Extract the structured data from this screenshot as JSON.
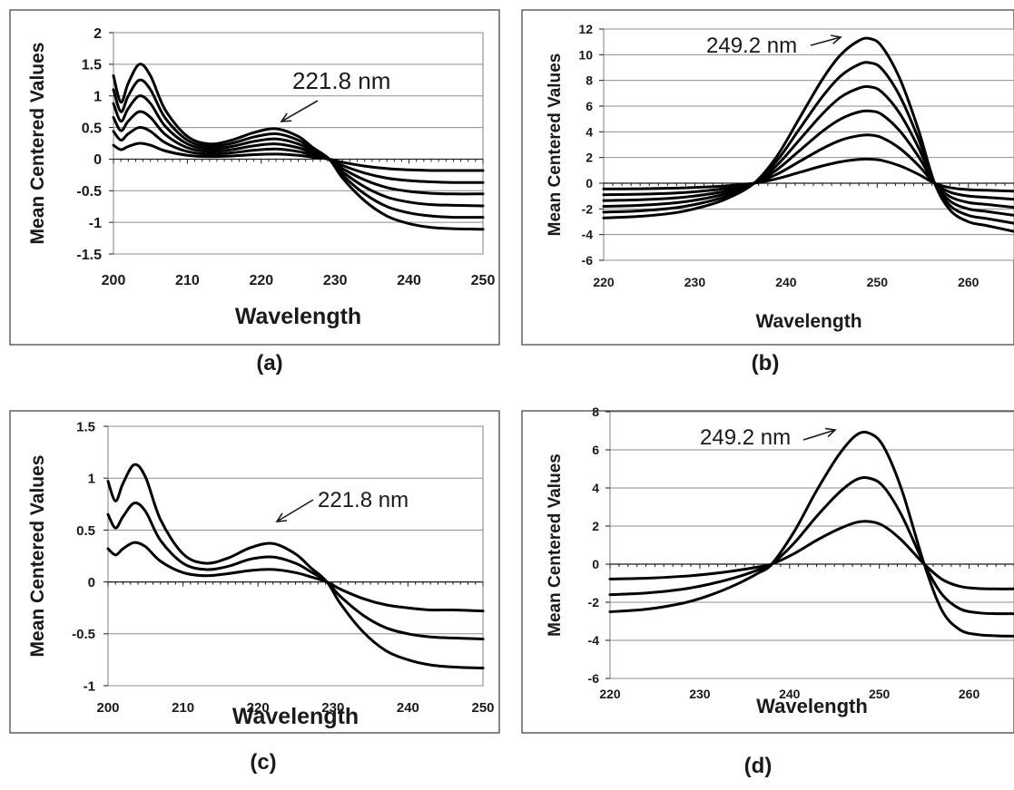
{
  "chart_data": [
    {
      "type": "line",
      "panel_label": "(a)",
      "xlabel": "Wavelength",
      "ylabel": "Mean Centered Values",
      "xlim": [
        200,
        250
      ],
      "ylim": [
        -1.5,
        2
      ],
      "x_ticks": [
        200,
        210,
        220,
        230,
        240,
        250
      ],
      "y_ticks": [
        -1.5,
        -1,
        -0.5,
        0,
        0.5,
        1,
        1.5,
        2
      ],
      "y_tick_labels": [
        "-1.5",
        "-1",
        "-0.5",
        "0",
        "0.5",
        "1",
        "1.5",
        "2"
      ],
      "grid": true,
      "annotation": {
        "text": "221.8 nm",
        "x": 221.8
      },
      "x": [
        200,
        201,
        202,
        203.5,
        205,
        207,
        210,
        213,
        216,
        219,
        222,
        225,
        227,
        229.2,
        231,
        234,
        237,
        240,
        243,
        246,
        250
      ],
      "series": [
        {
          "values": [
            0.22,
            0.15,
            0.2,
            0.25,
            0.22,
            0.13,
            0.06,
            0.04,
            0.05,
            0.07,
            0.08,
            0.06,
            0.03,
            0,
            -0.05,
            -0.11,
            -0.15,
            -0.17,
            -0.18,
            -0.18,
            -0.18
          ]
        },
        {
          "values": [
            0.44,
            0.3,
            0.4,
            0.5,
            0.44,
            0.26,
            0.12,
            0.08,
            0.1,
            0.14,
            0.16,
            0.12,
            0.06,
            0,
            -0.1,
            -0.22,
            -0.3,
            -0.34,
            -0.36,
            -0.37,
            -0.37
          ]
        },
        {
          "values": [
            0.66,
            0.45,
            0.6,
            0.75,
            0.66,
            0.39,
            0.18,
            0.12,
            0.15,
            0.21,
            0.24,
            0.18,
            0.09,
            0,
            -0.15,
            -0.33,
            -0.45,
            -0.51,
            -0.54,
            -0.55,
            -0.55
          ]
        },
        {
          "values": [
            0.88,
            0.6,
            0.8,
            1.0,
            0.88,
            0.52,
            0.24,
            0.16,
            0.2,
            0.28,
            0.32,
            0.24,
            0.12,
            0,
            -0.2,
            -0.44,
            -0.6,
            -0.68,
            -0.72,
            -0.73,
            -0.74
          ]
        },
        {
          "values": [
            1.1,
            0.75,
            1.0,
            1.25,
            1.1,
            0.65,
            0.3,
            0.2,
            0.25,
            0.35,
            0.4,
            0.3,
            0.15,
            0,
            -0.25,
            -0.55,
            -0.75,
            -0.85,
            -0.9,
            -0.92,
            -0.92
          ]
        },
        {
          "values": [
            1.32,
            0.9,
            1.2,
            1.5,
            1.32,
            0.78,
            0.36,
            0.24,
            0.3,
            0.42,
            0.48,
            0.36,
            0.18,
            0,
            -0.3,
            -0.66,
            -0.9,
            -1.02,
            -1.08,
            -1.1,
            -1.11
          ]
        }
      ]
    },
    {
      "type": "line",
      "panel_label": "(b)",
      "xlabel": "Wavelength",
      "ylabel": "Mean Centered Values",
      "xlim": [
        220,
        265
      ],
      "ylim": [
        -6,
        12
      ],
      "x_ticks": [
        220,
        230,
        240,
        250,
        260
      ],
      "y_ticks": [
        -6,
        -4,
        -2,
        0,
        2,
        4,
        6,
        8,
        10,
        12
      ],
      "y_tick_labels": [
        "-6",
        "-4",
        "-2",
        "0",
        "2",
        "4",
        "6",
        "8",
        "10",
        "12"
      ],
      "grid": true,
      "annotation": {
        "text": "249.2 nm",
        "x": 249.2
      },
      "x": [
        220,
        224,
        228,
        231,
        233.5,
        236.5,
        239,
        241.5,
        244,
        246,
        248,
        249.2,
        250.5,
        252.5,
        254.5,
        256.3,
        258,
        260,
        262,
        265
      ],
      "series": [
        {
          "values": [
            -0.45,
            -0.43,
            -0.38,
            -0.3,
            -0.2,
            0,
            0.35,
            0.85,
            1.35,
            1.67,
            1.85,
            1.87,
            1.78,
            1.35,
            0.7,
            0,
            -0.35,
            -0.5,
            -0.55,
            -0.62
          ]
        },
        {
          "values": [
            -0.9,
            -0.86,
            -0.76,
            -0.6,
            -0.4,
            0,
            0.7,
            1.7,
            2.7,
            3.35,
            3.7,
            3.75,
            3.55,
            2.7,
            1.4,
            0,
            -0.7,
            -1.0,
            -1.1,
            -1.25
          ]
        },
        {
          "values": [
            -1.35,
            -1.29,
            -1.14,
            -0.9,
            -0.6,
            0,
            1.05,
            2.55,
            4.05,
            5.0,
            5.55,
            5.62,
            5.35,
            4.05,
            2.1,
            0,
            -1.05,
            -1.5,
            -1.65,
            -1.88
          ]
        },
        {
          "values": [
            -1.8,
            -1.72,
            -1.52,
            -1.2,
            -0.8,
            0,
            1.4,
            3.4,
            5.4,
            6.7,
            7.4,
            7.5,
            7.1,
            5.4,
            2.8,
            0,
            -1.4,
            -2.0,
            -2.2,
            -2.5
          ]
        },
        {
          "values": [
            -2.25,
            -2.15,
            -1.9,
            -1.5,
            -1.0,
            0,
            1.75,
            4.25,
            6.75,
            8.35,
            9.25,
            9.37,
            8.9,
            6.75,
            3.5,
            0,
            -1.75,
            -2.5,
            -2.75,
            -3.12
          ]
        },
        {
          "values": [
            -2.7,
            -2.58,
            -2.28,
            -1.8,
            -1.2,
            0,
            2.1,
            5.1,
            8.1,
            10.0,
            11.1,
            11.25,
            10.65,
            8.1,
            4.2,
            0,
            -2.1,
            -3.0,
            -3.3,
            -3.75
          ]
        }
      ]
    },
    {
      "type": "line",
      "panel_label": "(c)",
      "xlabel": "Wavelength",
      "ylabel": "Mean Centered Values",
      "xlim": [
        200,
        250
      ],
      "ylim": [
        -1,
        1.5
      ],
      "x_ticks": [
        200,
        210,
        220,
        230,
        240,
        250
      ],
      "y_ticks": [
        -1,
        -0.5,
        0,
        0.5,
        1,
        1.5
      ],
      "y_tick_labels": [
        "-1",
        "-0.5",
        "0",
        "0.5",
        "1",
        "1.5"
      ],
      "grid": true,
      "annotation": {
        "text": "221.8 nm",
        "x": 221.8
      },
      "x": [
        200,
        201,
        202,
        203.5,
        205,
        207,
        210,
        213,
        216,
        219,
        222,
        225,
        227,
        229.2,
        231,
        234,
        237,
        240,
        243,
        246,
        250
      ],
      "series": [
        {
          "values": [
            0.32,
            0.26,
            0.32,
            0.38,
            0.34,
            0.2,
            0.09,
            0.06,
            0.08,
            0.11,
            0.12,
            0.09,
            0.05,
            0,
            -0.07,
            -0.16,
            -0.22,
            -0.25,
            -0.27,
            -0.27,
            -0.28
          ]
        },
        {
          "values": [
            0.65,
            0.52,
            0.63,
            0.76,
            0.68,
            0.4,
            0.18,
            0.12,
            0.15,
            0.22,
            0.24,
            0.18,
            0.1,
            0,
            -0.14,
            -0.32,
            -0.44,
            -0.5,
            -0.53,
            -0.54,
            -0.55
          ]
        },
        {
          "values": [
            0.97,
            0.78,
            0.95,
            1.13,
            1.01,
            0.6,
            0.27,
            0.18,
            0.23,
            0.33,
            0.37,
            0.27,
            0.14,
            0,
            -0.21,
            -0.48,
            -0.66,
            -0.75,
            -0.8,
            -0.82,
            -0.83
          ]
        }
      ]
    },
    {
      "type": "line",
      "panel_label": "(d)",
      "xlabel": "Wavelength",
      "ylabel": "Mean Centered Values",
      "xlim": [
        220,
        265
      ],
      "ylim": [
        -6,
        8
      ],
      "x_ticks": [
        220,
        230,
        240,
        250,
        260
      ],
      "y_ticks": [
        -6,
        -4,
        -2,
        0,
        2,
        4,
        6,
        8
      ],
      "y_tick_labels": [
        "-6",
        "-4",
        "-2",
        "0",
        "2",
        "4",
        "6",
        "8"
      ],
      "grid": true,
      "annotation": {
        "text": "249.2 nm",
        "x": 249.2
      },
      "x": [
        220,
        224,
        228,
        231,
        234,
        236.5,
        238,
        240.5,
        243,
        245.5,
        247.5,
        249,
        250.5,
        252.5,
        255,
        257,
        259,
        261,
        263,
        265
      ],
      "series": [
        {
          "values": [
            -0.78,
            -0.74,
            -0.64,
            -0.52,
            -0.34,
            -0.15,
            0,
            0.55,
            1.25,
            1.85,
            2.2,
            2.23,
            2.0,
            1.25,
            0,
            -0.8,
            -1.17,
            -1.28,
            -1.3,
            -1.3
          ]
        },
        {
          "values": [
            -1.6,
            -1.52,
            -1.32,
            -1.06,
            -0.7,
            -0.3,
            0,
            1.1,
            2.5,
            3.75,
            4.45,
            4.5,
            4.05,
            2.55,
            0,
            -1.6,
            -2.35,
            -2.55,
            -2.6,
            -2.6
          ]
        },
        {
          "values": [
            -2.5,
            -2.37,
            -2.06,
            -1.65,
            -1.08,
            -0.47,
            0,
            1.7,
            3.85,
            5.75,
            6.8,
            6.85,
            6.15,
            3.9,
            0,
            -2.45,
            -3.45,
            -3.7,
            -3.76,
            -3.78
          ]
        }
      ]
    }
  ]
}
